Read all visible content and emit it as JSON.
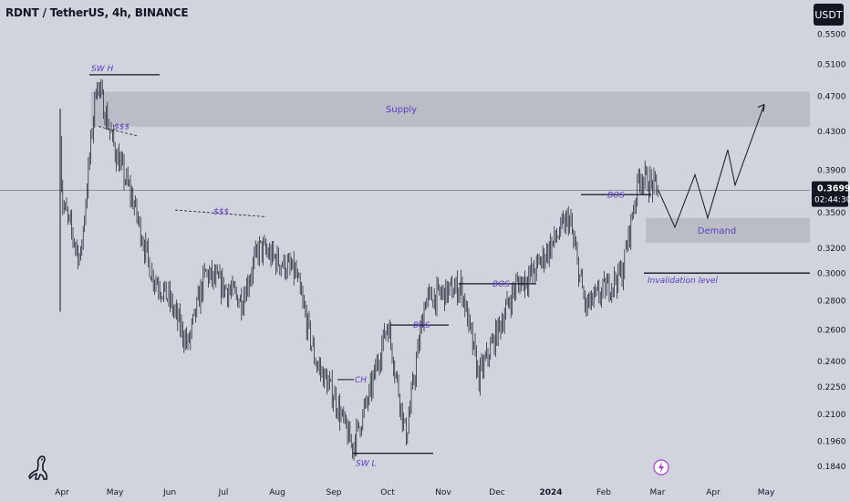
{
  "header": {
    "title": "RDNT / TetherUS, 4h, BINANCE",
    "quote_currency": "USDT"
  },
  "icons": {
    "logo": "tradingview-dino-icon",
    "event": "lightning-bolt-icon"
  },
  "colors": {
    "background": "#d1d4dc",
    "candles": "#131722",
    "annotation": "#5b3cc4",
    "zone": "#b6b9c2",
    "current_price_line": "#131722",
    "badge": "#131722"
  },
  "chart_data": {
    "type": "candlestick",
    "title": "RDNT / TetherUS, 4h, BINANCE",
    "x_axis": {
      "tick_labels": [
        "Apr",
        "May",
        "Jun",
        "Jul",
        "Aug",
        "Sep",
        "Oct",
        "Nov",
        "Dec",
        "2024",
        "Feb",
        "Mar",
        "Apr",
        "May"
      ]
    },
    "y_axis": {
      "scale": "log",
      "range": [
        0.18,
        0.575
      ],
      "tick_labels": [
        "0.5500",
        "0.5100",
        "0.4700",
        "0.4300",
        "0.3900",
        "0.3500",
        "0.3200",
        "0.3000",
        "0.2800",
        "0.2600",
        "0.2400",
        "0.2250",
        "0.2100",
        "0.1960",
        "0.1840"
      ]
    },
    "current_price": {
      "value": "0.3699",
      "countdown": "02:44:30"
    },
    "price_path": [
      [
        "Apr",
        0.43
      ],
      [
        "Apr",
        0.36
      ],
      [
        "Apr",
        0.31
      ],
      [
        "May",
        0.49
      ],
      [
        "May",
        0.41
      ],
      [
        "May",
        0.36
      ],
      [
        "Jun",
        0.3
      ],
      [
        "Jun",
        0.28
      ],
      [
        "Jun",
        0.25
      ],
      [
        "Jul",
        0.3
      ],
      [
        "Jul",
        0.28
      ],
      [
        "Aug",
        0.32
      ],
      [
        "Aug",
        0.3
      ],
      [
        "Sep",
        0.24
      ],
      [
        "Sep",
        0.22
      ],
      [
        "Sep",
        0.193
      ],
      [
        "Oct",
        0.22
      ],
      [
        "Oct",
        0.265
      ],
      [
        "Oct",
        0.198
      ],
      [
        "Nov",
        0.28
      ],
      [
        "Nov",
        0.29
      ],
      [
        "Dec",
        0.23
      ],
      [
        "Dec",
        0.29
      ],
      [
        "2024",
        0.3
      ],
      [
        "2024",
        0.345
      ],
      [
        "Feb",
        0.275
      ],
      [
        "Feb",
        0.3
      ],
      [
        "Mar",
        0.385
      ],
      [
        "Mar",
        0.3699
      ]
    ],
    "zones": [
      {
        "label": "Supply",
        "low": 0.435,
        "high": 0.475
      },
      {
        "label": "Demand",
        "low": 0.324,
        "high": 0.345
      }
    ],
    "levels": [
      {
        "label": "Invalidation level",
        "value": 0.3
      },
      {
        "label": "SW H",
        "value": 0.496
      },
      {
        "label": "SW L",
        "value": 0.19
      }
    ],
    "annotations": [
      "SW H",
      "$$$",
      "$$$",
      "CH",
      "SW L",
      "BOS",
      "BOS",
      "BOS",
      "BOS"
    ],
    "projection": [
      0.3699,
      0.337,
      0.385,
      0.345,
      0.41,
      0.375,
      0.46
    ]
  }
}
